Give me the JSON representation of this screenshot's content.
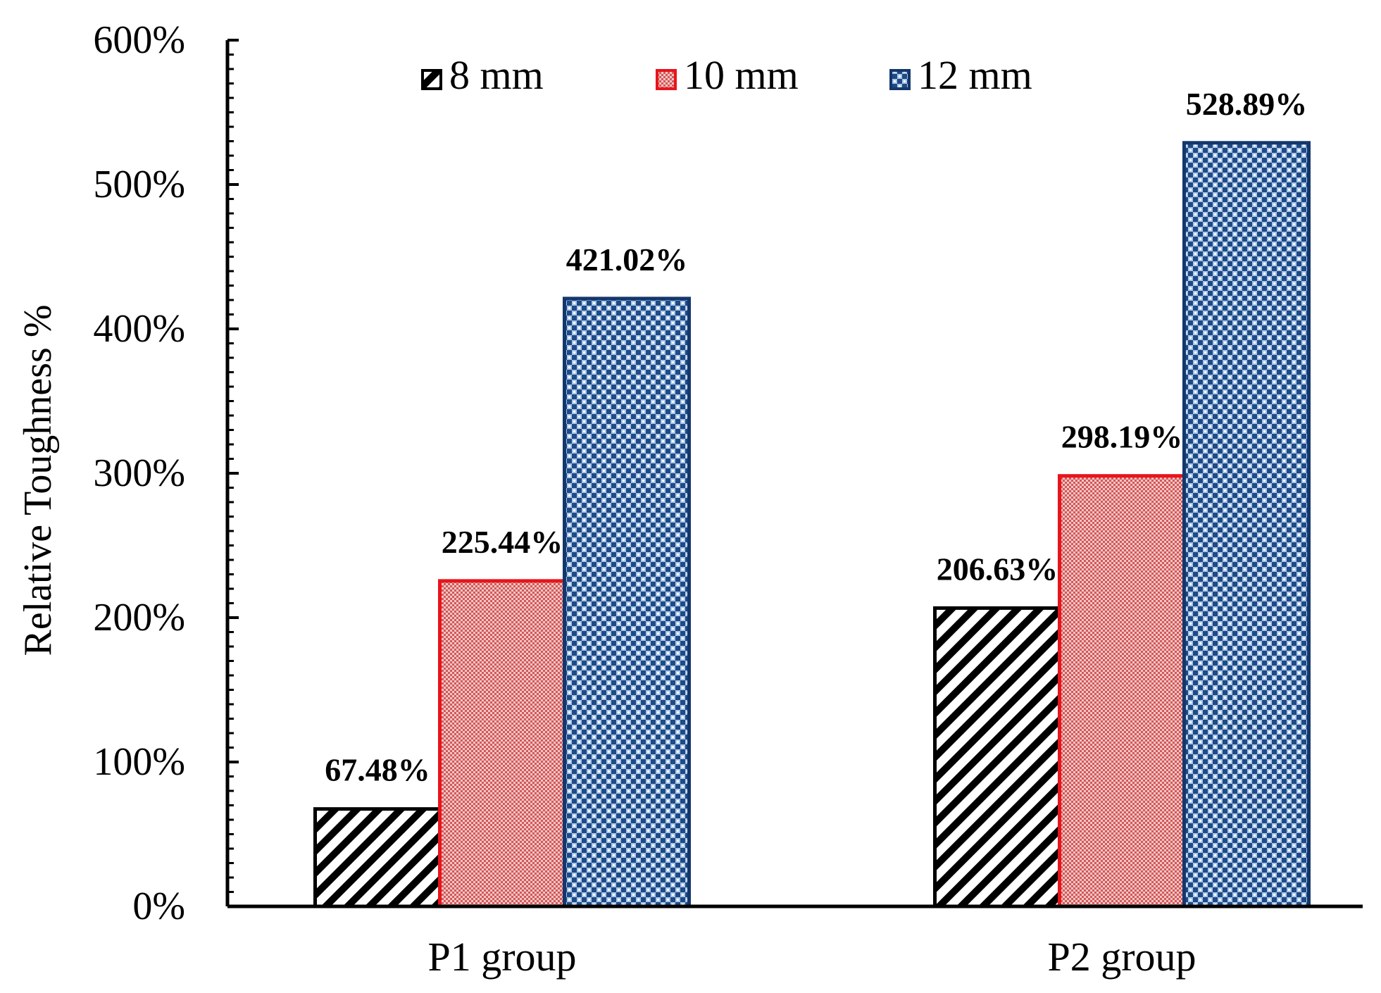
{
  "chart_data": {
    "type": "bar",
    "title": "",
    "xlabel": "",
    "ylabel": "Relative Toughness %",
    "categories": [
      "P1 group",
      "P2 group"
    ],
    "series": [
      {
        "name": "8 mm",
        "values": [
          67.48,
          206.63
        ],
        "labels": [
          "67.48%",
          "206.63%"
        ],
        "color": "#000000",
        "pattern": "hatch"
      },
      {
        "name": "10 mm",
        "values": [
          225.44,
          298.19
        ],
        "labels": [
          "225.44%",
          "298.19%"
        ],
        "color": "#e8141b",
        "pattern": "red-dots"
      },
      {
        "name": "12 mm",
        "values": [
          421.02,
          528.89
        ],
        "labels": [
          "421.02%",
          "528.89%"
        ],
        "color": "#14376b",
        "pattern": "blue-check"
      }
    ],
    "ylim": [
      0,
      600
    ],
    "yticks": [
      0,
      100,
      200,
      300,
      400,
      500,
      600
    ],
    "ytick_labels": [
      "0%",
      "100%",
      "200%",
      "300%",
      "400%",
      "500%",
      "600%"
    ],
    "grid": false,
    "legend_position": "top-center"
  }
}
